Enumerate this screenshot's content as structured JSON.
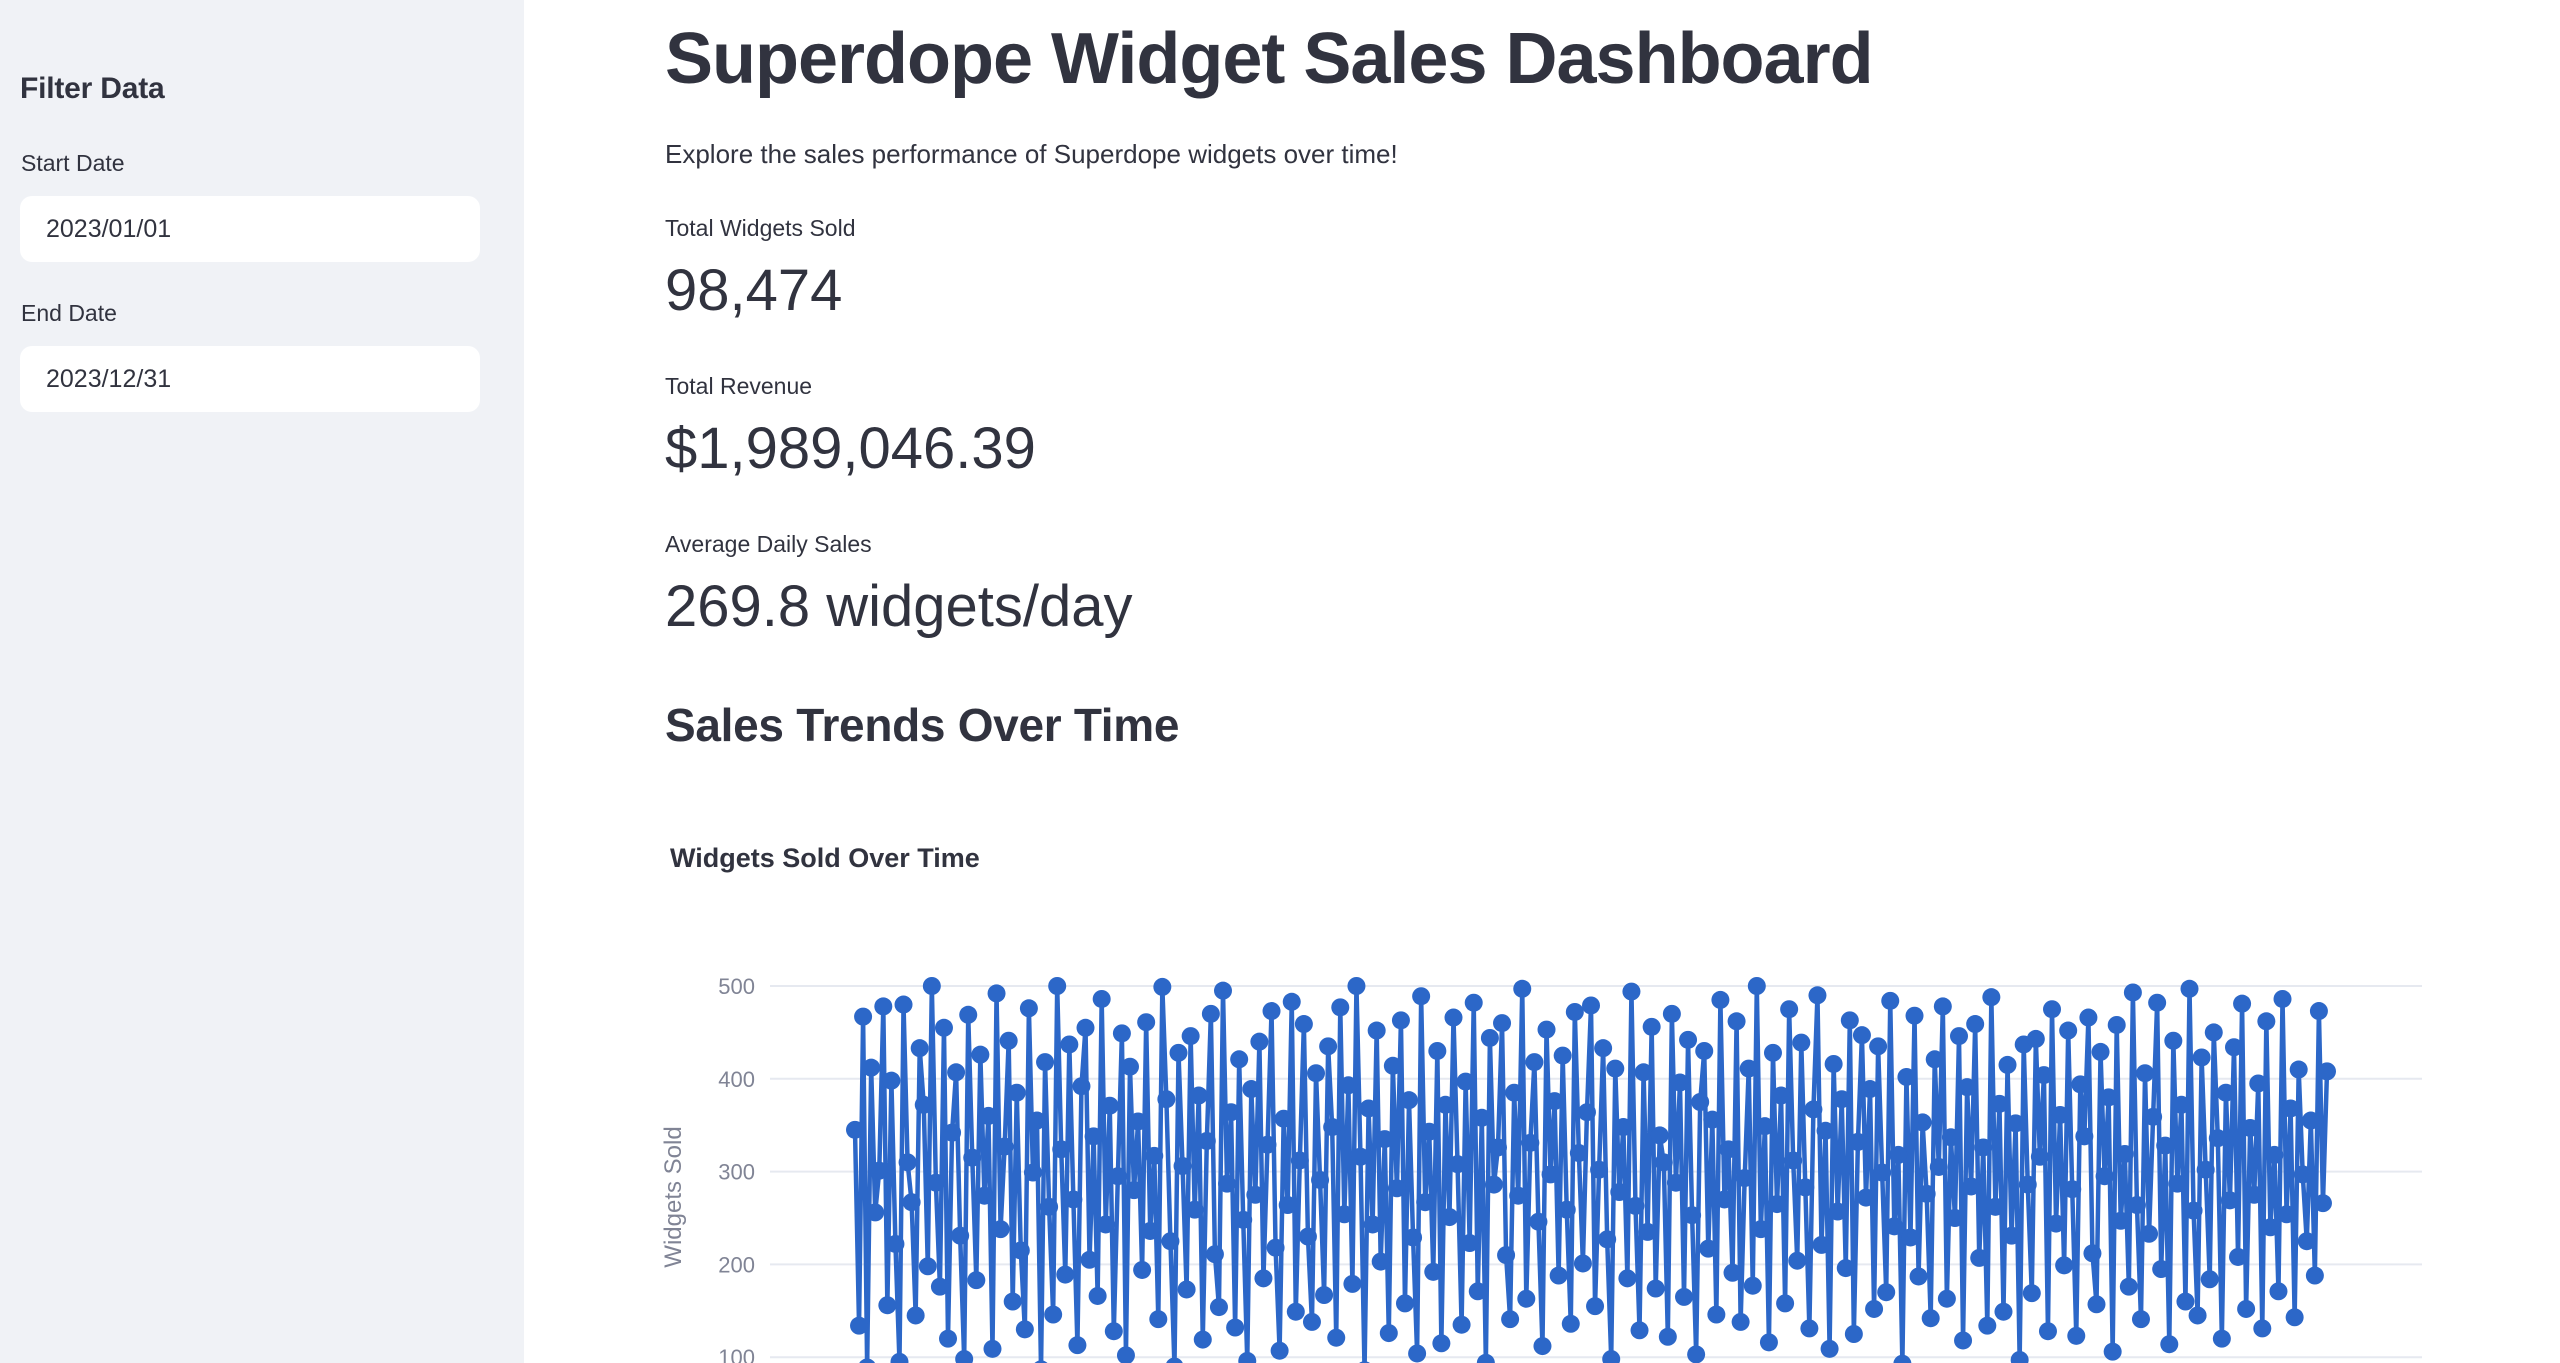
{
  "sidebar": {
    "heading": "Filter Data",
    "start_date": {
      "label": "Start Date",
      "value": "2023/01/01"
    },
    "end_date": {
      "label": "End Date",
      "value": "2023/12/31"
    }
  },
  "main": {
    "title": "Superdope Widget Sales Dashboard",
    "subtitle": "Explore the sales performance of Superdope widgets over time!",
    "metrics": [
      {
        "label": "Total Widgets Sold",
        "value": "98,474"
      },
      {
        "label": "Total Revenue",
        "value": "$1,989,046.39"
      },
      {
        "label": "Average Daily Sales",
        "value": "269.8 widgets/day"
      }
    ],
    "section_heading": "Sales Trends Over Time"
  },
  "colors": {
    "text": "#31333F",
    "sidebar_bg": "#f0f2f6",
    "line_blue": "#2c67c8",
    "grid": "#e6e9f0",
    "axis_label": "#808495"
  },
  "chart_data": {
    "type": "line",
    "title": "Widgets Sold Over Time",
    "xlabel": "",
    "ylabel": "Widgets Sold",
    "x_range": [
      "2023/01/01",
      "2023/12/31"
    ],
    "frequency": "daily",
    "y_ticks": [
      100,
      200,
      300,
      400,
      500
    ],
    "ylim": [
      60,
      520
    ],
    "grid": "horizontal",
    "legend": false,
    "marker": "circle",
    "line_color": "#2c67c8",
    "values": [
      345,
      134,
      467,
      89,
      412,
      256,
      301,
      478,
      156,
      398,
      222,
      95,
      480,
      310,
      267,
      145,
      433,
      372,
      198,
      500,
      288,
      176,
      455,
      120,
      342,
      407,
      231,
      98,
      469,
      315,
      183,
      426,
      274,
      360,
      109,
      492,
      238,
      327,
      441,
      160,
      385,
      215,
      130,
      476,
      299,
      355,
      87,
      418,
      262,
      146,
      500,
      324,
      189,
      437,
      270,
      113,
      392,
      455,
      205,
      338,
      166,
      486,
      243,
      371,
      128,
      295,
      449,
      102,
      413,
      280,
      354,
      194,
      461,
      236,
      317,
      141,
      499,
      378,
      225,
      90,
      428,
      306,
      173,
      446,
      259,
      382,
      119,
      333,
      470,
      211,
      154,
      495,
      287,
      364,
      132,
      421,
      248,
      96,
      389,
      275,
      440,
      185,
      329,
      473,
      218,
      107,
      357,
      264,
      483,
      149,
      312,
      459,
      230,
      138,
      406,
      291,
      167,
      435,
      348,
      121,
      477,
      254,
      393,
      179,
      500,
      316,
      86,
      368,
      243,
      452,
      203,
      335,
      126,
      414,
      282,
      463,
      158,
      377,
      229,
      104,
      489,
      267,
      343,
      192,
      430,
      115,
      372,
      251,
      466,
      308,
      135,
      397,
      223,
      482,
      171,
      358,
      94,
      444,
      286,
      326,
      460,
      210,
      141,
      385,
      274,
      497,
      163,
      331,
      418,
      246,
      112,
      453,
      297,
      376,
      188,
      425,
      259,
      136,
      472,
      320,
      201,
      364,
      479,
      155,
      302,
      433,
      227,
      98,
      411,
      278,
      348,
      185,
      494,
      263,
      129,
      407,
      235,
      456,
      174,
      339,
      310,
      122,
      470,
      288,
      396,
      165,
      442,
      253,
      103,
      375,
      430,
      217,
      356,
      146,
      485,
      270,
      324,
      191,
      462,
      138,
      293,
      411,
      177,
      500,
      238,
      349,
      116,
      428,
      265,
      382,
      158,
      475,
      312,
      204,
      439,
      283,
      131,
      367,
      490,
      221,
      344,
      109,
      416,
      257,
      378,
      196,
      463,
      125,
      332,
      447,
      272,
      389,
      152,
      435,
      299,
      170,
      484,
      241,
      318,
      93,
      402,
      229,
      468,
      187,
      353,
      276,
      142,
      421,
      305,
      478,
      163,
      337,
      250,
      446,
      118,
      391,
      284,
      459,
      207,
      326,
      134,
      488,
      262,
      373,
      149,
      415,
      231,
      352,
      97,
      437,
      286,
      169,
      443,
      316,
      404,
      128,
      475,
      244,
      361,
      199,
      452,
      281,
      123,
      394,
      338,
      466,
      212,
      157,
      429,
      295,
      380,
      106,
      458,
      247,
      319,
      176,
      493,
      264,
      141,
      406,
      233,
      359,
      482,
      195,
      328,
      114,
      441,
      287,
      372,
      160,
      497,
      258,
      145,
      423,
      302,
      184,
      450,
      336,
      120,
      385,
      269,
      434,
      208,
      481,
      152,
      347,
      275,
      395,
      131,
      462,
      240,
      318,
      171,
      486,
      254,
      368,
      143,
      410,
      297,
      225,
      355,
      188,
      473,
      266,
      408
    ]
  }
}
